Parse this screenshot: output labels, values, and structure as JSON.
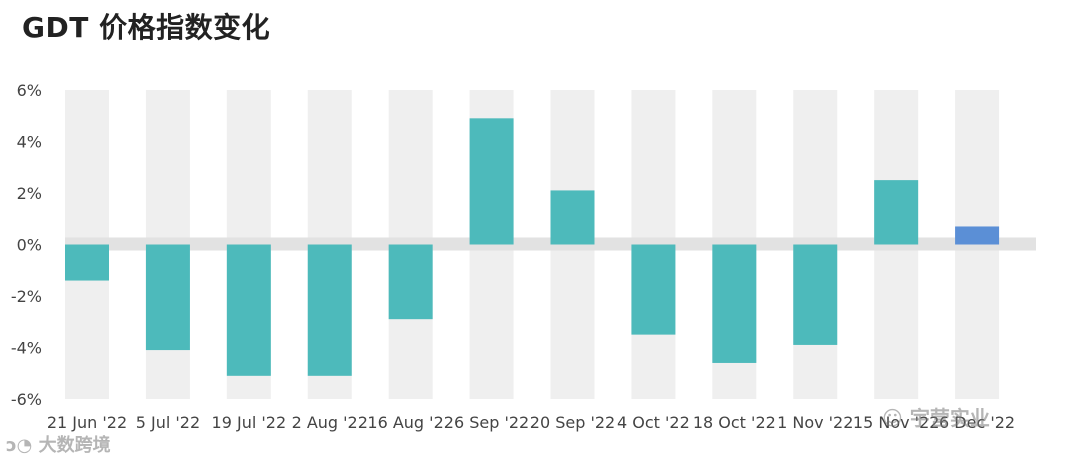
{
  "title": "GDT 价格指数变化",
  "chart_data": {
    "type": "bar",
    "title": "GDT 价格指数变化",
    "categories": [
      "21 Jun '22",
      "5 Jul '22",
      "19 Jul '22",
      "2 Aug '22",
      "16 Aug '22",
      "6 Sep '22",
      "20 Sep '22",
      "4 Oct '22",
      "18 Oct '22",
      "1 Nov '22",
      "15 Nov '22",
      "6 Dec '22"
    ],
    "values": [
      -1.4,
      -4.1,
      -5.1,
      -5.1,
      -2.9,
      4.9,
      2.1,
      -3.5,
      -4.6,
      -3.9,
      2.5,
      0.7
    ],
    "ylim": [
      -6,
      6
    ],
    "yticks": [
      6,
      4,
      2,
      0,
      -2,
      -4,
      -6
    ],
    "ytick_labels": [
      "6%",
      "4%",
      "2%",
      "0%",
      "-2%",
      "-4%",
      "-6%"
    ],
    "xlabel": "",
    "ylabel": "",
    "grid": false,
    "colors": {
      "bar": "#4dbabb",
      "last_bar": "#5b8fd6",
      "band_shade": "#efefef",
      "zero_band": "#e2e2e2",
      "tick_text": "#444444"
    }
  },
  "watermarks": {
    "left": "大数跨境",
    "right": "宇营实业"
  }
}
